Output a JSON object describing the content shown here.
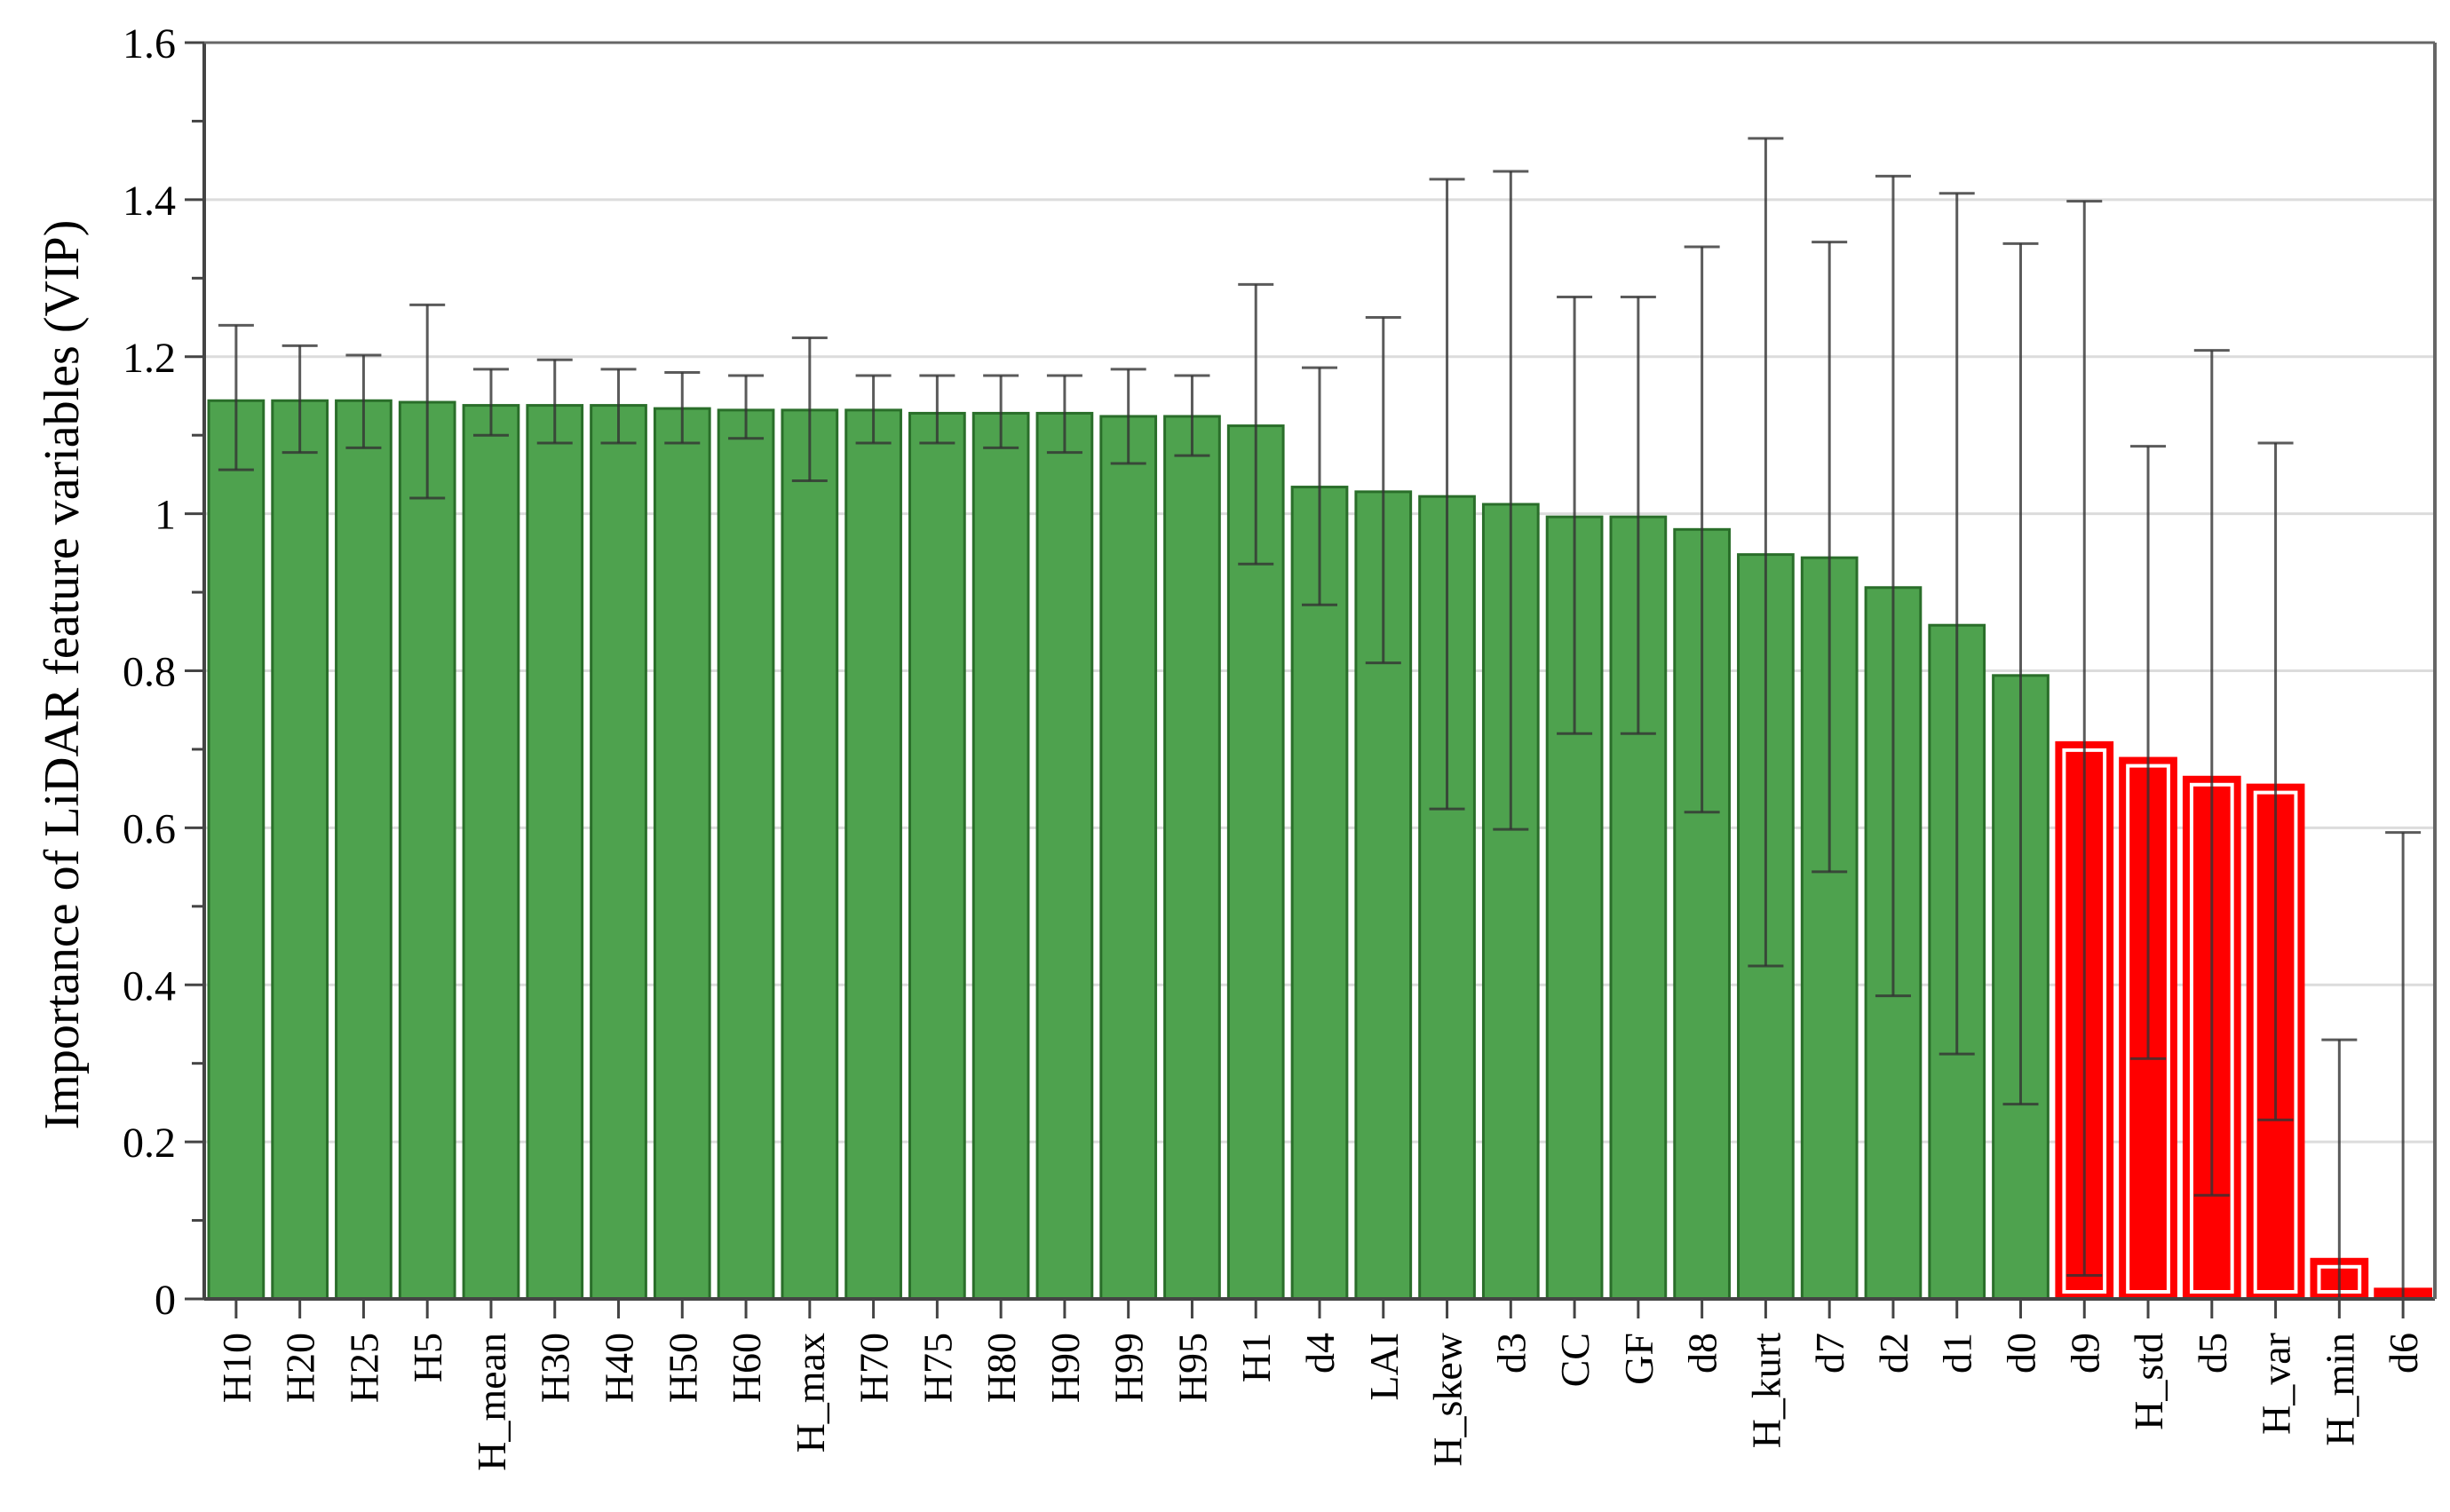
{
  "chart_data": {
    "type": "bar",
    "title": "",
    "xlabel": "",
    "ylabel": "Importance of LiDAR feature variables (VIP)",
    "ylim": [
      0,
      1.6
    ],
    "yticks": [
      "0",
      "0.2",
      "0.4",
      "0.6",
      "0.8",
      "1",
      "1.2",
      "1.4",
      "1.6"
    ],
    "grid": true,
    "legend": "none",
    "colors": {
      "important": "#4ea24e",
      "important_edge": "#2a6e2a",
      "unimportant": "#ff0000",
      "error_bar": "#333333"
    },
    "categories": [
      "H10",
      "H20",
      "H25",
      "H5",
      "H_mean",
      "H30",
      "H40",
      "H50",
      "H60",
      "H_max",
      "H70",
      "H75",
      "H80",
      "H90",
      "H99",
      "H95",
      "H1",
      "d4",
      "LAI",
      "H_skew",
      "d3",
      "CC",
      "GF",
      "d8",
      "H_kurt",
      "d7",
      "d2",
      "d1",
      "d0",
      "d9",
      "H_std",
      "d5",
      "H_var",
      "H_min",
      "d6"
    ],
    "values": [
      1.144,
      1.144,
      1.144,
      1.142,
      1.138,
      1.138,
      1.138,
      1.134,
      1.132,
      1.132,
      1.132,
      1.128,
      1.128,
      1.128,
      1.124,
      1.124,
      1.112,
      1.034,
      1.028,
      1.022,
      1.012,
      0.996,
      0.996,
      0.98,
      0.948,
      0.944,
      0.906,
      0.858,
      0.794,
      0.708,
      0.688,
      0.664,
      0.654,
      0.05,
      0.012
    ],
    "error_upper": [
      1.24,
      1.214,
      1.202,
      1.266,
      1.184,
      1.196,
      1.184,
      1.18,
      1.176,
      1.224,
      1.176,
      1.176,
      1.176,
      1.176,
      1.184,
      1.176,
      1.292,
      1.186,
      1.25,
      1.426,
      1.436,
      1.276,
      1.276,
      1.34,
      1.478,
      1.346,
      1.43,
      1.408,
      1.344,
      1.398,
      1.086,
      1.208,
      1.09,
      0.33,
      0.594
    ],
    "error_lower": [
      1.056,
      1.078,
      1.084,
      1.02,
      1.1,
      1.09,
      1.09,
      1.09,
      1.096,
      1.042,
      1.09,
      1.09,
      1.084,
      1.078,
      1.064,
      1.074,
      0.936,
      0.884,
      0.81,
      0.624,
      0.598,
      0.72,
      0.72,
      0.62,
      0.424,
      0.544,
      0.386,
      0.312,
      0.248,
      0.03,
      0.306,
      0.132,
      0.228,
      0,
      0
    ],
    "highlight": [
      false,
      false,
      false,
      false,
      false,
      false,
      false,
      false,
      false,
      false,
      false,
      false,
      false,
      false,
      false,
      false,
      false,
      false,
      false,
      false,
      false,
      false,
      false,
      false,
      false,
      false,
      false,
      false,
      false,
      true,
      true,
      true,
      true,
      true,
      true
    ]
  }
}
